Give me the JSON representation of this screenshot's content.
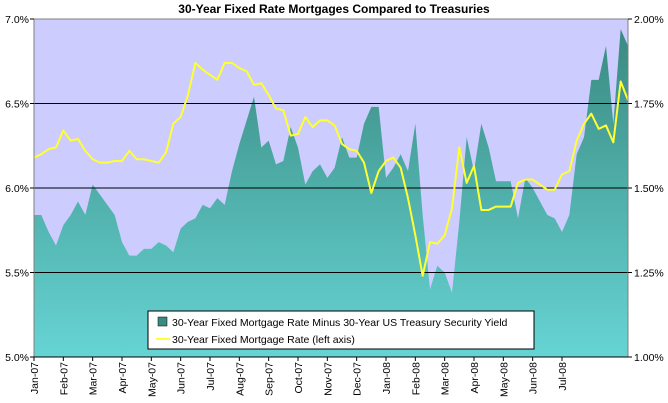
{
  "chart_data": {
    "type": "area+line",
    "title": "30-Year Fixed Rate Mortgages Compared to Treasuries",
    "left_axis": {
      "ylim": [
        5.0,
        7.0
      ],
      "ticks": [
        "5.0%",
        "5.5%",
        "6.0%",
        "6.5%",
        "7.0%"
      ]
    },
    "right_axis": {
      "ylim": [
        1.0,
        2.0
      ],
      "ticks": [
        "1.00%",
        "1.25%",
        "1.50%",
        "1.75%",
        "2.00%"
      ]
    },
    "x_tick_labels": [
      "Jan-07",
      "Feb-07",
      "Mar-07",
      "Apr-07",
      "May-07",
      "Jun-07",
      "Jul-07",
      "Aug-07",
      "Sep-07",
      "Oct-07",
      "Nov-07",
      "Dec-07",
      "Jan-08",
      "Feb-08",
      "Mar-08",
      "Apr-08",
      "May-08",
      "Jun-08",
      "Jul-08"
    ],
    "x_points_per_month": 4,
    "grid": {
      "horizontal": true,
      "vertical": false
    },
    "legend_placement": "bottom-center",
    "colors": {
      "plot_background": "#ccccff",
      "area_fill_top": "#3a8a80",
      "area_fill_bottom": "#66d4d4",
      "line": "#ffff33",
      "gridline": "#000000"
    },
    "series": [
      {
        "name": "30-Year Fixed Mortgage Rate Minus 30-Year US Treasury Security Yield",
        "type": "area",
        "axis": "right",
        "values": [
          1.42,
          1.42,
          1.37,
          1.33,
          1.39,
          1.42,
          1.46,
          1.42,
          1.51,
          1.48,
          1.45,
          1.42,
          1.34,
          1.3,
          1.3,
          1.32,
          1.32,
          1.34,
          1.33,
          1.31,
          1.38,
          1.4,
          1.41,
          1.45,
          1.44,
          1.47,
          1.45,
          1.55,
          1.63,
          1.7,
          1.77,
          1.62,
          1.64,
          1.57,
          1.58,
          1.68,
          1.62,
          1.51,
          1.55,
          1.57,
          1.53,
          1.56,
          1.65,
          1.59,
          1.59,
          1.69,
          1.74,
          1.74,
          1.53,
          1.56,
          1.6,
          1.55,
          1.69,
          1.42,
          1.2,
          1.27,
          1.25,
          1.19,
          1.4,
          1.65,
          1.55,
          1.69,
          1.62,
          1.52,
          1.52,
          1.52,
          1.41,
          1.53,
          1.5,
          1.46,
          1.42,
          1.41,
          1.37,
          1.42,
          1.6,
          1.65,
          1.82,
          1.82,
          1.92,
          1.69,
          1.97,
          1.92
        ]
      },
      {
        "name": "30-Year Fixed Mortgage Rate (left axis)",
        "type": "line",
        "axis": "left",
        "values": [
          6.18,
          6.2,
          6.23,
          6.24,
          6.34,
          6.28,
          6.29,
          6.22,
          6.17,
          6.15,
          6.15,
          6.16,
          6.16,
          6.22,
          6.17,
          6.17,
          6.16,
          6.15,
          6.21,
          6.38,
          6.42,
          6.55,
          6.74,
          6.7,
          6.67,
          6.64,
          6.74,
          6.74,
          6.71,
          6.69,
          6.61,
          6.62,
          6.55,
          6.47,
          6.46,
          6.31,
          6.32,
          6.42,
          6.36,
          6.4,
          6.4,
          6.37,
          6.26,
          6.23,
          6.22,
          6.15,
          5.97,
          6.1,
          6.16,
          6.18,
          6.12,
          5.94,
          5.72,
          5.48,
          5.68,
          5.67,
          5.72,
          5.88,
          6.24,
          6.03,
          6.13,
          5.87,
          5.87,
          5.89,
          5.89,
          5.89,
          6.03,
          6.05,
          6.05,
          6.02,
          5.99,
          5.99,
          6.08,
          6.1,
          6.28,
          6.38,
          6.44,
          6.35,
          6.37,
          6.27,
          6.63,
          6.52
        ]
      }
    ]
  }
}
